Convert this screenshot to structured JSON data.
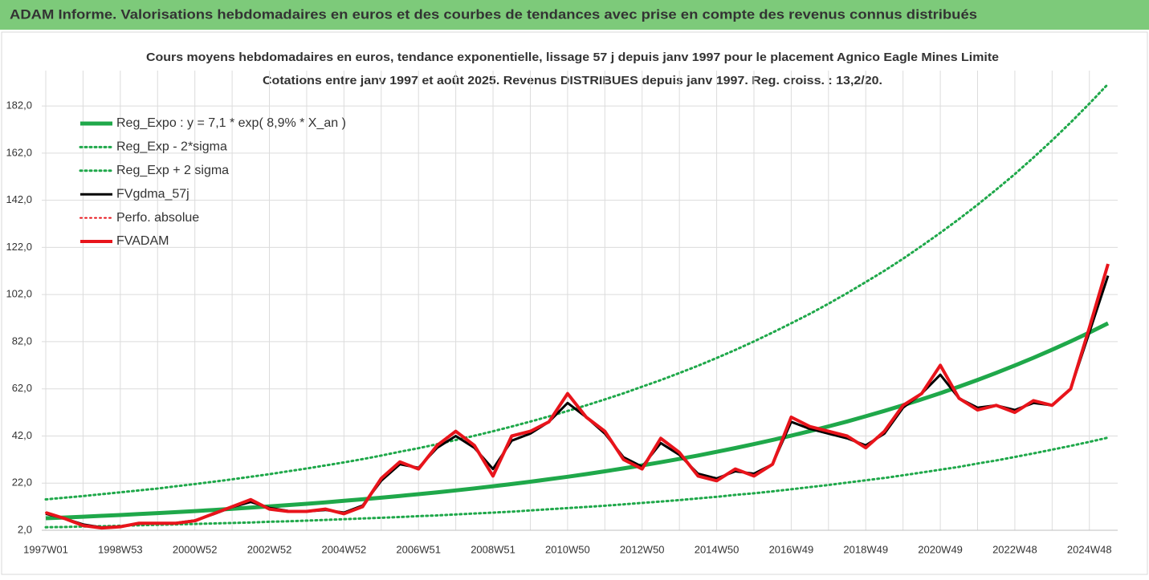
{
  "header": {
    "title": "ADAM Informe. Valorisations hebdomadaires en euros et des courbes de tendances avec prise en compte des revenus connus distribués"
  },
  "chart_data": {
    "type": "line",
    "title": "Cours moyens hebdomadaires en euros, tendance exponentielle, lissage 57 j depuis janv 1997 pour le placement Agnico Eagle Mines Limite",
    "subtitle": "Cotations entre janv 1997 et août 2025. Revenus DISTRIBUES depuis janv 1997. Reg. croiss. : 13,2/20.",
    "categories": [
      "1997W01",
      null,
      null,
      null,
      "1998W53",
      null,
      null,
      null,
      "2000W52",
      null,
      null,
      null,
      "2002W52",
      null,
      null,
      null,
      "2004W52",
      null,
      null,
      null,
      "2006W51",
      null,
      null,
      null,
      "2008W51",
      null,
      null,
      null,
      "2010W50",
      null,
      null,
      null,
      "2012W50",
      null,
      null,
      null,
      "2014W50",
      null,
      null,
      null,
      "2016W49",
      null,
      null,
      null,
      "2018W49",
      null,
      null,
      null,
      "2020W49",
      null,
      null,
      null,
      "2022W48",
      null,
      null,
      null,
      "2024W48",
      null
    ],
    "ylim": [
      2,
      197
    ],
    "yticks": [
      {
        "value": 2,
        "label": "2,0"
      },
      {
        "value": 22,
        "label": "22,0"
      },
      {
        "value": 42,
        "label": "42,0"
      },
      {
        "value": 62,
        "label": "62,0"
      },
      {
        "value": 82,
        "label": "82,0"
      },
      {
        "value": 102,
        "label": "102,0"
      },
      {
        "value": 122,
        "label": "122,0"
      },
      {
        "value": 142,
        "label": "142,0"
      },
      {
        "value": 162,
        "label": "162,0"
      },
      {
        "value": 182,
        "label": "182,0"
      }
    ],
    "grid": true,
    "legend": "upper left",
    "series": [
      {
        "name": "Reg_Expo : y = 7,1 * exp( 8,9% *  X_an )",
        "color": "#1fa84a",
        "style": "solid",
        "width": 5,
        "values": [
          7.1,
          7.42,
          7.76,
          8.11,
          8.48,
          8.87,
          9.27,
          9.7,
          10.14,
          10.6,
          11.08,
          11.59,
          12.12,
          12.67,
          13.24,
          13.85,
          14.48,
          15.14,
          15.83,
          16.55,
          17.3,
          18.09,
          18.91,
          19.77,
          20.67,
          21.61,
          22.6,
          23.63,
          24.7,
          25.83,
          27.0,
          28.23,
          29.52,
          30.86,
          32.27,
          33.73,
          35.27,
          36.87,
          38.55,
          40.31,
          42.14,
          44.06,
          46.07,
          48.16,
          50.36,
          52.65,
          55.04,
          57.55,
          60.17,
          62.91,
          65.77,
          68.76,
          71.89,
          75.17,
          78.59,
          82.16,
          85.9,
          89.81
        ]
      },
      {
        "name": "Reg_Exp - 2*sigma",
        "color": "#1fa84a",
        "style": "dotted",
        "width": 3,
        "values": [
          3.3,
          3.4,
          3.6,
          3.7,
          3.9,
          4.1,
          4.3,
          4.5,
          4.7,
          4.9,
          5.1,
          5.3,
          5.6,
          5.8,
          6.1,
          6.4,
          6.7,
          7.0,
          7.3,
          7.6,
          8.0,
          8.3,
          8.7,
          9.1,
          9.5,
          9.9,
          10.4,
          10.9,
          11.4,
          11.9,
          12.4,
          13.0,
          13.6,
          14.2,
          14.8,
          15.5,
          16.2,
          17.0,
          17.7,
          18.5,
          19.4,
          20.3,
          21.2,
          22.2,
          23.2,
          24.2,
          25.3,
          26.5,
          27.7,
          28.9,
          30.3,
          31.6,
          33.1,
          34.6,
          36.2,
          37.8,
          39.5,
          41.3
        ]
      },
      {
        "name": "Reg_Exp + 2 sigma",
        "color": "#1fa84a",
        "style": "dotted",
        "width": 3,
        "values": [
          15.1,
          15.8,
          16.5,
          17.3,
          18.1,
          18.9,
          19.7,
          20.7,
          21.6,
          22.6,
          23.6,
          24.7,
          25.8,
          27.0,
          28.2,
          29.5,
          30.8,
          32.2,
          33.7,
          35.3,
          36.8,
          38.5,
          40.3,
          42.1,
          44.0,
          46.0,
          48.1,
          50.3,
          52.6,
          55.0,
          57.5,
          60.1,
          62.9,
          65.7,
          68.7,
          71.8,
          75.1,
          78.5,
          82.1,
          85.9,
          89.8,
          93.8,
          98.1,
          102.6,
          107.3,
          112.1,
          117.2,
          122.6,
          128.2,
          134.0,
          140.1,
          146.5,
          153.1,
          160.1,
          167.4,
          175.0,
          183.0,
          191.3
        ]
      },
      {
        "name": "FVgdma_57j",
        "color": "#000000",
        "style": "solid",
        "width": 3,
        "values": [
          9,
          7,
          4.5,
          3.2,
          3.6,
          4.8,
          5,
          5.1,
          6.2,
          8.8,
          11.8,
          14,
          11.5,
          10.2,
          10,
          10.6,
          9.5,
          12.5,
          23,
          30,
          28.5,
          37,
          42,
          37,
          28,
          40,
          43,
          48,
          56,
          50,
          43,
          33,
          29,
          39,
          34,
          26,
          24,
          27,
          26,
          30,
          48,
          45,
          43,
          41,
          38,
          43,
          54,
          60,
          68,
          58,
          54,
          55,
          53,
          56,
          55,
          62,
          86,
          110
        ]
      },
      {
        "name": "Perfo. absolue",
        "color": "#e8141b",
        "style": "dotted",
        "width": 2,
        "values": [
          9.5,
          7,
          4,
          3,
          3.5,
          5,
          5,
          5,
          6,
          9,
          12,
          15,
          11,
          10,
          10,
          11,
          9,
          12,
          24,
          31,
          28,
          38,
          44,
          38,
          25,
          42,
          44,
          48,
          60,
          50,
          44,
          32,
          28,
          41,
          35,
          25,
          23,
          28,
          25,
          30,
          50,
          46,
          44,
          42,
          37,
          44,
          55,
          60,
          72,
          58,
          53,
          55,
          52,
          57,
          55,
          62,
          88,
          115
        ]
      },
      {
        "name": "FVADAM",
        "color": "#e8141b",
        "style": "solid",
        "width": 4,
        "values": [
          9.5,
          7,
          4,
          3,
          3.5,
          5,
          5,
          5,
          6,
          9,
          12,
          15,
          11,
          10,
          10,
          11,
          9,
          12,
          24,
          31,
          28,
          38,
          44,
          38,
          25,
          42,
          44,
          48,
          60,
          50,
          44,
          32,
          28,
          41,
          35,
          25,
          23,
          28,
          25,
          30,
          50,
          46,
          44,
          42,
          37,
          44,
          55,
          60,
          72,
          58,
          53,
          55,
          52,
          57,
          55,
          62,
          88,
          115
        ]
      }
    ]
  }
}
